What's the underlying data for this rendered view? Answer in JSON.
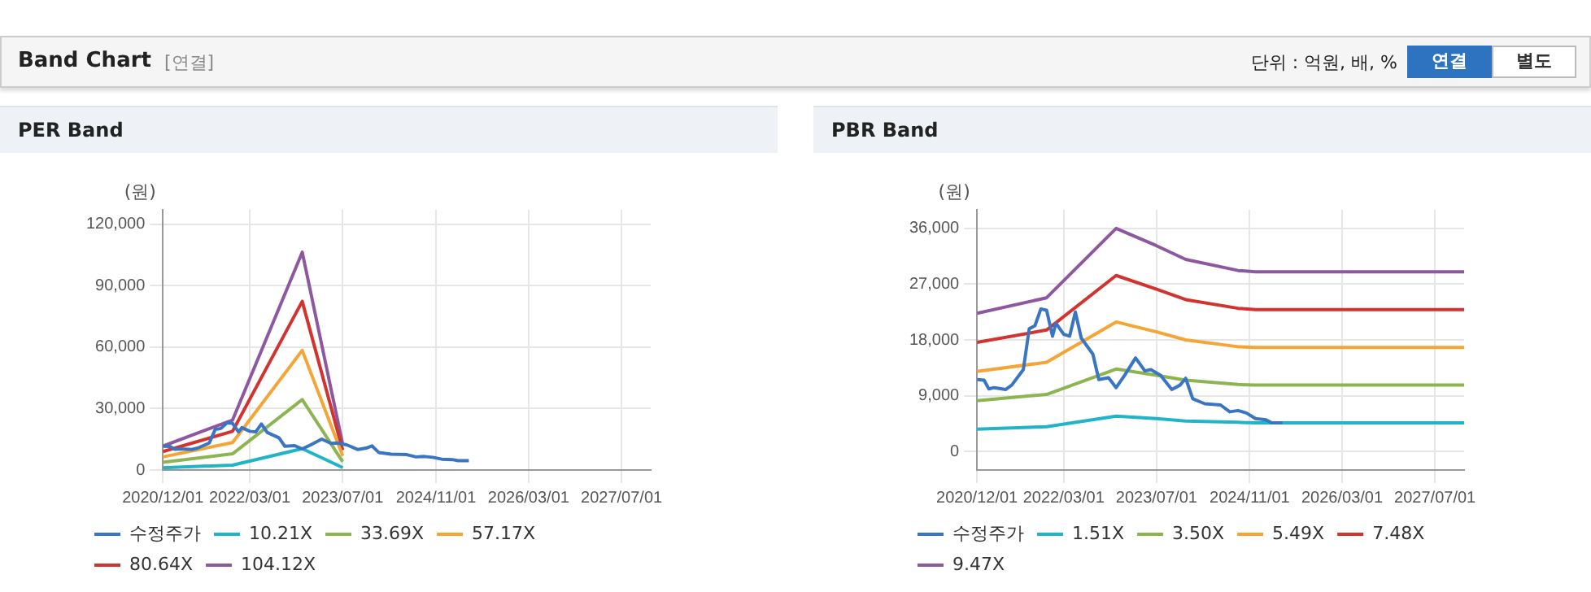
{
  "chart_data": [
    {
      "type": "other",
      "title": "Band Chart",
      "annotations": [
        "[연결]",
        "단위 : 억원, 배, %",
        "연결",
        "별도"
      ]
    },
    {
      "type": "line",
      "title": "PER Band",
      "ylabel": "(원)",
      "marker": "none",
      "grid": true,
      "legend": "bottom",
      "x": [
        "2020-12-01",
        "2021-12-01",
        "2022-12-01",
        "2023-07-01"
      ],
      "xlim": [
        "2020-12-01",
        "2027-12-01"
      ],
      "xticks": [
        {
          "value": "2020-12-01",
          "label": "2020/12/01"
        },
        {
          "value": "2022-03-01",
          "label": "2022/03/01"
        },
        {
          "value": "2023-07-01",
          "label": "2023/07/01"
        },
        {
          "value": "2024-11-01",
          "label": "2024/11/01"
        },
        {
          "value": "2026-03-01",
          "label": "2026/03/01"
        },
        {
          "value": "2027-07-01",
          "label": "2027/07/01"
        }
      ],
      "ylim": [
        0,
        127000
      ],
      "yticks": [
        {
          "value": 0,
          "label": "0"
        },
        {
          "value": 30000,
          "label": "30,000"
        },
        {
          "value": 60000,
          "label": "60,000"
        },
        {
          "value": 90000,
          "label": "90,000"
        },
        {
          "value": 120000,
          "label": "120,000"
        }
      ],
      "series": [
        {
          "name": "수정주가",
          "color": "#3a75c4",
          "x": [
            "2020-12-01",
            "2021-01-07",
            "2021-02-01",
            "2021-03-01",
            "2021-05-01",
            "2021-06-01",
            "2021-08-01",
            "2021-09-01",
            "2021-10-01",
            "2021-11-01",
            "2021-12-01",
            "2022-01-01",
            "2022-01-19",
            "2022-03-01",
            "2022-04-01",
            "2022-05-01",
            "2022-06-01",
            "2022-08-01",
            "2022-09-01",
            "2022-10-22",
            "2022-12-01",
            "2023-01-15",
            "2023-03-13",
            "2023-05-01",
            "2023-06-01",
            "2023-07-22",
            "2023-09-19",
            "2023-11-01",
            "2023-12-01",
            "2024-01-07",
            "2024-03-10",
            "2024-06-01",
            "2024-07-19",
            "2024-09-01",
            "2024-10-15",
            "2024-12-01",
            "2025-01-25",
            "2025-02-25",
            "2025-04-22"
          ],
          "values": [
            11600,
            11500,
            10100,
            10300,
            10000,
            10700,
            13200,
            19800,
            20300,
            23000,
            22800,
            18600,
            20700,
            18900,
            18600,
            22500,
            18300,
            15700,
            11600,
            11900,
            10300,
            12300,
            15100,
            13000,
            13200,
            12300,
            10000,
            10700,
            11800,
            8500,
            7700,
            7500,
            6400,
            6600,
            6200,
            5300,
            5100,
            4600,
            4600
          ]
        },
        {
          "name": "10.21X",
          "color": "#1fb5c7",
          "values": [
            1100,
            2400,
            10400,
            1200
          ]
        },
        {
          "name": "33.69X",
          "color": "#8cb552",
          "values": [
            3800,
            7900,
            34400,
            4000
          ]
        },
        {
          "name": "57.17X",
          "color": "#f5a536",
          "values": [
            6400,
            13400,
            58400,
            6900
          ]
        },
        {
          "name": "80.64X",
          "color": "#d3332f",
          "values": [
            9000,
            18900,
            82300,
            9700
          ]
        },
        {
          "name": "104.12X",
          "color": "#8e58a0",
          "values": [
            11700,
            24400,
            106300,
            12500
          ]
        }
      ]
    },
    {
      "type": "line",
      "title": "PBR Band",
      "ylabel": "(원)",
      "marker": "none",
      "grid": true,
      "legend": "bottom",
      "x": [
        "2020-12-01",
        "2021-12-01",
        "2022-12-01",
        "2023-07-01",
        "2023-12-01",
        "2024-09-01",
        "2024-12-01",
        "2027-12-01"
      ],
      "xlim": [
        "2020-12-01",
        "2027-12-01"
      ],
      "xticks": [
        {
          "value": "2020-12-01",
          "label": "2020/12/01"
        },
        {
          "value": "2022-03-01",
          "label": "2022/03/01"
        },
        {
          "value": "2023-07-01",
          "label": "2023/07/01"
        },
        {
          "value": "2024-11-01",
          "label": "2024/11/01"
        },
        {
          "value": "2026-03-01",
          "label": "2026/03/01"
        },
        {
          "value": "2027-07-01",
          "label": "2027/07/01"
        }
      ],
      "ylim": [
        -3000,
        39000
      ],
      "yticks": [
        {
          "value": 0,
          "label": "0"
        },
        {
          "value": 9000,
          "label": "9,000"
        },
        {
          "value": 18000,
          "label": "18,000"
        },
        {
          "value": 27000,
          "label": "27,000"
        },
        {
          "value": 36000,
          "label": "36,000"
        }
      ],
      "series": [
        {
          "name": "수정주가",
          "color": "#3a75c4",
          "x": [
            "2020-12-01",
            "2021-01-07",
            "2021-02-01",
            "2021-03-01",
            "2021-05-01",
            "2021-06-01",
            "2021-08-01",
            "2021-09-01",
            "2021-10-01",
            "2021-11-01",
            "2021-12-01",
            "2022-01-01",
            "2022-01-19",
            "2022-03-01",
            "2022-04-01",
            "2022-05-01",
            "2022-06-01",
            "2022-08-01",
            "2022-09-01",
            "2022-10-22",
            "2022-12-01",
            "2023-01-15",
            "2023-03-13",
            "2023-05-01",
            "2023-06-01",
            "2023-07-22",
            "2023-09-19",
            "2023-11-01",
            "2023-12-01",
            "2024-01-07",
            "2024-03-10",
            "2024-06-01",
            "2024-07-19",
            "2024-09-01",
            "2024-10-15",
            "2024-12-01",
            "2025-01-25",
            "2025-02-25",
            "2025-04-22"
          ],
          "values": [
            11600,
            11500,
            10100,
            10300,
            10000,
            10700,
            13200,
            19800,
            20300,
            23000,
            22800,
            18600,
            20700,
            18900,
            18600,
            22500,
            18300,
            15700,
            11600,
            11900,
            10300,
            12300,
            15100,
            13000,
            13200,
            12300,
            10000,
            10700,
            11800,
            8500,
            7700,
            7500,
            6400,
            6600,
            6200,
            5300,
            5100,
            4600,
            4600
          ]
        },
        {
          "name": "1.51X",
          "color": "#1fb5c7",
          "values": [
            3600,
            4000,
            5700,
            5300,
            4900,
            4700,
            4600,
            4600
          ]
        },
        {
          "name": "3.50X",
          "color": "#8cb552",
          "values": [
            8200,
            9200,
            13300,
            12300,
            11500,
            10800,
            10700,
            10700
          ]
        },
        {
          "name": "5.49X",
          "color": "#f5a536",
          "values": [
            12900,
            14400,
            20900,
            19300,
            18000,
            16900,
            16800,
            16800
          ]
        },
        {
          "name": "7.48X",
          "color": "#d3332f",
          "values": [
            17600,
            19600,
            28400,
            26200,
            24500,
            23100,
            22900,
            22900
          ]
        },
        {
          "name": "9.47X",
          "color": "#8e58a0",
          "values": [
            22300,
            24800,
            36000,
            33200,
            31000,
            29200,
            29000,
            29000
          ]
        }
      ]
    }
  ]
}
